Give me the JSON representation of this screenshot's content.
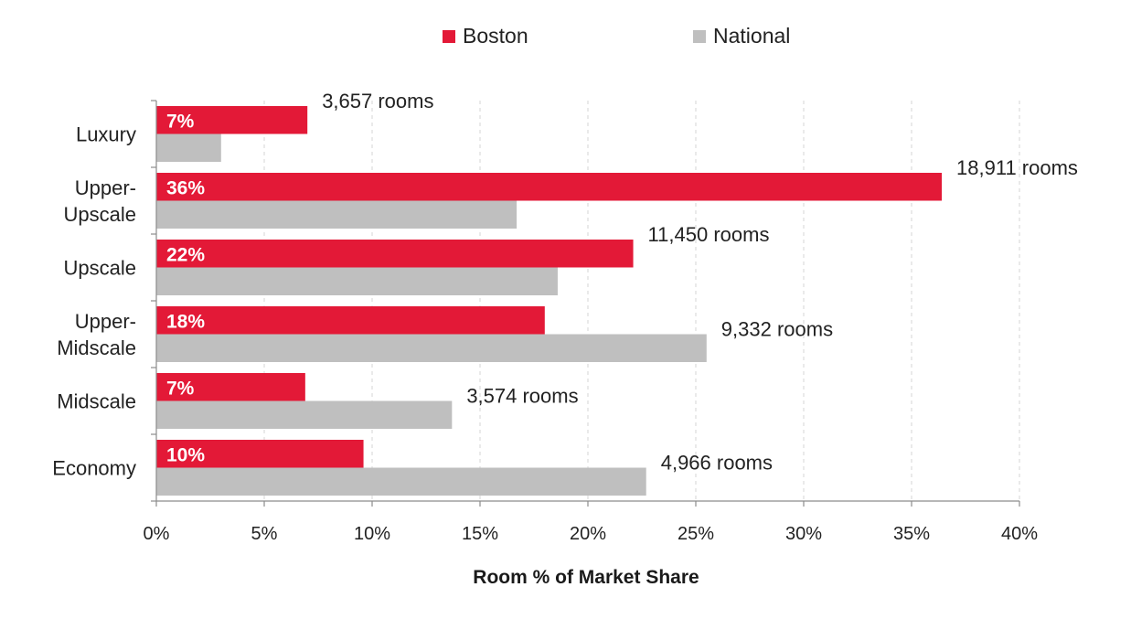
{
  "chart_data": {
    "type": "bar",
    "orientation": "horizontal",
    "categories": [
      "Luxury",
      "Upper-\nUpscale",
      "Upscale",
      "Upper-\nMidscale",
      "Midscale",
      "Economy"
    ],
    "series": [
      {
        "name": "Boston",
        "color": "#e31937",
        "values": [
          7.0,
          36.4,
          22.1,
          18.0,
          6.9,
          9.6
        ],
        "data_labels": [
          "7%",
          "36%",
          "22%",
          "18%",
          "7%",
          "10%"
        ]
      },
      {
        "name": "National",
        "color": "#bfbfbf",
        "values": [
          3.0,
          16.7,
          18.6,
          25.5,
          13.7,
          22.7
        ]
      }
    ],
    "room_annotations": [
      "3,657 rooms",
      "18,911 rooms",
      "11,450 rooms",
      "9,332 rooms",
      "3,574 rooms",
      "4,966 rooms"
    ],
    "room_annotation_series": [
      "Boston",
      "Boston",
      "Boston",
      "National",
      "National",
      "National"
    ],
    "xlabel": "Room % of Market Share",
    "ylabel": "",
    "title": "",
    "xlim": [
      0,
      40
    ],
    "xticks": [
      0,
      5,
      10,
      15,
      20,
      25,
      30,
      35,
      40
    ],
    "xtick_labels": [
      "0%",
      "5%",
      "10%",
      "15%",
      "20%",
      "25%",
      "30%",
      "35%",
      "40%"
    ],
    "grid": "vertical dashed",
    "legend_position": "top-center"
  }
}
